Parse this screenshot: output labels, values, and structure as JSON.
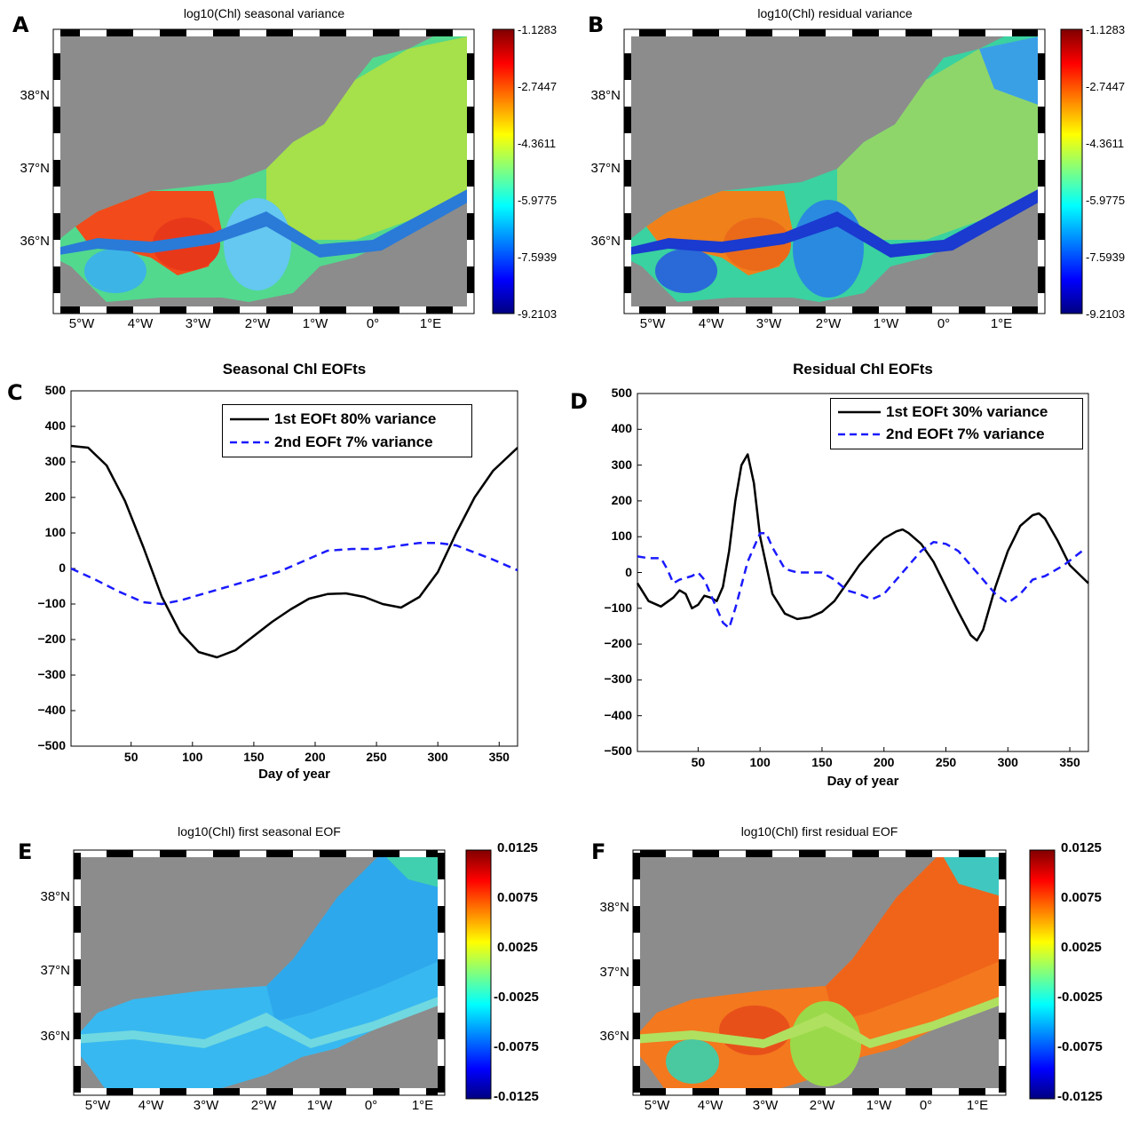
{
  "panels": {
    "A": {
      "letter": "A",
      "title": "log10(Chl) seasonal variance",
      "colorbar_ticks": [
        "-1.1283",
        "-2.7447",
        "-4.3611",
        "-5.9775",
        "-7.5939",
        "-9.2103"
      ]
    },
    "B": {
      "letter": "B",
      "title": "log10(Chl) residual variance",
      "colorbar_ticks": [
        "-1.1283",
        "-2.7447",
        "-4.3611",
        "-5.9775",
        "-7.5939",
        "-9.2103"
      ]
    },
    "E": {
      "letter": "E",
      "title": "log10(Chl) first seasonal EOF",
      "colorbar_ticks": [
        "0.0125",
        "0.0075",
        "0.0025",
        "-0.0025",
        "-0.0075",
        "-0.0125"
      ]
    },
    "F": {
      "letter": "F",
      "title": "log10(Chl) first residual EOF",
      "colorbar_ticks": [
        "0.0125",
        "0.0075",
        "0.0025",
        "-0.0025",
        "-0.0075",
        "-0.0125"
      ]
    },
    "C": {
      "letter": "C"
    },
    "D": {
      "letter": "D"
    }
  },
  "map_axes": {
    "lat_ticks": [
      "38°N",
      "37°N",
      "36°N"
    ],
    "lon_ticks": [
      "5°W",
      "4°W",
      "3°W",
      "2°W",
      "1°W",
      "0°",
      "1°E"
    ]
  },
  "colors": {
    "land": "#8c8c8c",
    "series1": "#000000",
    "series2": "#1a1aff"
  },
  "chart_data": [
    {
      "type": "line",
      "title": "Seasonal Chl EOFts",
      "xlabel": "Day of year",
      "ylabel": "",
      "xlim": [
        1,
        365
      ],
      "ylim": [
        -500,
        500
      ],
      "xticks": [
        50,
        100,
        150,
        200,
        250,
        300,
        350
      ],
      "yticks": [
        500,
        400,
        300,
        200,
        100,
        0,
        -100,
        -200,
        -300,
        -400,
        -500
      ],
      "legend_position": "top-right",
      "series": [
        {
          "name": "1st EOFt 80% variance",
          "style": "solid",
          "x": [
            1,
            15,
            30,
            45,
            60,
            75,
            90,
            105,
            120,
            135,
            150,
            165,
            180,
            195,
            210,
            225,
            240,
            255,
            270,
            285,
            300,
            315,
            330,
            345,
            365
          ],
          "y": [
            345,
            340,
            290,
            190,
            60,
            -80,
            -180,
            -235,
            -250,
            -230,
            -190,
            -150,
            -115,
            -85,
            -72,
            -70,
            -80,
            -100,
            -110,
            -80,
            -10,
            100,
            200,
            275,
            340
          ]
        },
        {
          "name": "2nd EOFt 7% variance",
          "style": "dashed",
          "x": [
            1,
            20,
            40,
            60,
            75,
            90,
            110,
            130,
            150,
            170,
            190,
            210,
            230,
            250,
            270,
            285,
            300,
            315,
            330,
            345,
            365
          ],
          "y": [
            0,
            -30,
            -65,
            -95,
            -100,
            -90,
            -70,
            -50,
            -30,
            -10,
            20,
            50,
            55,
            55,
            65,
            72,
            72,
            65,
            45,
            25,
            -5
          ]
        }
      ]
    },
    {
      "type": "line",
      "title": "Residual Chl EOFts",
      "xlabel": "Day of year",
      "ylabel": "",
      "xlim": [
        1,
        365
      ],
      "ylim": [
        -500,
        500
      ],
      "xticks": [
        50,
        100,
        150,
        200,
        250,
        300,
        350
      ],
      "yticks": [
        500,
        400,
        300,
        200,
        100,
        0,
        -100,
        -200,
        -300,
        -400,
        -500
      ],
      "legend_position": "top-right",
      "series": [
        {
          "name": "1st EOFt 30% variance",
          "style": "solid",
          "x": [
            1,
            10,
            20,
            30,
            35,
            40,
            45,
            50,
            55,
            60,
            65,
            70,
            75,
            80,
            85,
            90,
            95,
            100,
            110,
            120,
            130,
            140,
            150,
            160,
            170,
            180,
            190,
            200,
            210,
            215,
            220,
            230,
            240,
            250,
            260,
            270,
            275,
            280,
            290,
            300,
            310,
            320,
            325,
            330,
            340,
            350,
            365
          ],
          "y": [
            -30,
            -80,
            -95,
            -70,
            -50,
            -60,
            -100,
            -90,
            -65,
            -70,
            -80,
            -40,
            60,
            200,
            300,
            330,
            250,
            100,
            -60,
            -115,
            -130,
            -125,
            -110,
            -80,
            -30,
            20,
            60,
            95,
            115,
            120,
            110,
            80,
            30,
            -40,
            -110,
            -175,
            -190,
            -160,
            -40,
            60,
            130,
            160,
            165,
            150,
            90,
            20,
            -30
          ]
        },
        {
          "name": "2nd EOFt 7% variance",
          "style": "dashed",
          "x": [
            1,
            10,
            20,
            25,
            30,
            35,
            45,
            50,
            55,
            60,
            65,
            70,
            75,
            80,
            90,
            100,
            105,
            110,
            120,
            130,
            150,
            160,
            170,
            180,
            190,
            200,
            210,
            220,
            230,
            240,
            250,
            260,
            270,
            280,
            290,
            300,
            310,
            320,
            330,
            345,
            360
          ],
          "y": [
            45,
            40,
            40,
            10,
            -30,
            -20,
            -10,
            0,
            -20,
            -60,
            -100,
            -140,
            -155,
            -100,
            30,
            110,
            110,
            70,
            10,
            0,
            0,
            -20,
            -50,
            -60,
            -75,
            -60,
            -20,
            20,
            60,
            85,
            80,
            60,
            20,
            -20,
            -60,
            -85,
            -60,
            -20,
            -10,
            20,
            60
          ]
        }
      ]
    }
  ]
}
